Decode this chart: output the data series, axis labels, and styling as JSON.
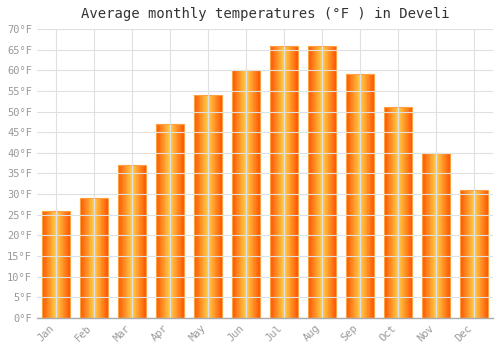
{
  "title": "Average monthly temperatures (°F ) in Develi",
  "months": [
    "Jan",
    "Feb",
    "Mar",
    "Apr",
    "May",
    "Jun",
    "Jul",
    "Aug",
    "Sep",
    "Oct",
    "Nov",
    "Dec"
  ],
  "values": [
    26,
    29,
    37,
    47,
    54,
    60,
    66,
    66,
    59,
    51,
    40,
    31
  ],
  "bar_color_center": "#FFD04A",
  "bar_color_edge": "#FFA500",
  "ylim": [
    0,
    70
  ],
  "yticks": [
    0,
    5,
    10,
    15,
    20,
    25,
    30,
    35,
    40,
    45,
    50,
    55,
    60,
    65,
    70
  ],
  "ytick_labels": [
    "0°F",
    "5°F",
    "10°F",
    "15°F",
    "20°F",
    "25°F",
    "30°F",
    "35°F",
    "40°F",
    "45°F",
    "50°F",
    "55°F",
    "60°F",
    "65°F",
    "70°F"
  ],
  "background_color": "#ffffff",
  "grid_color": "#e0e0e0",
  "title_fontsize": 10,
  "tick_fontsize": 7.5,
  "font_family": "monospace",
  "bar_width": 0.75
}
